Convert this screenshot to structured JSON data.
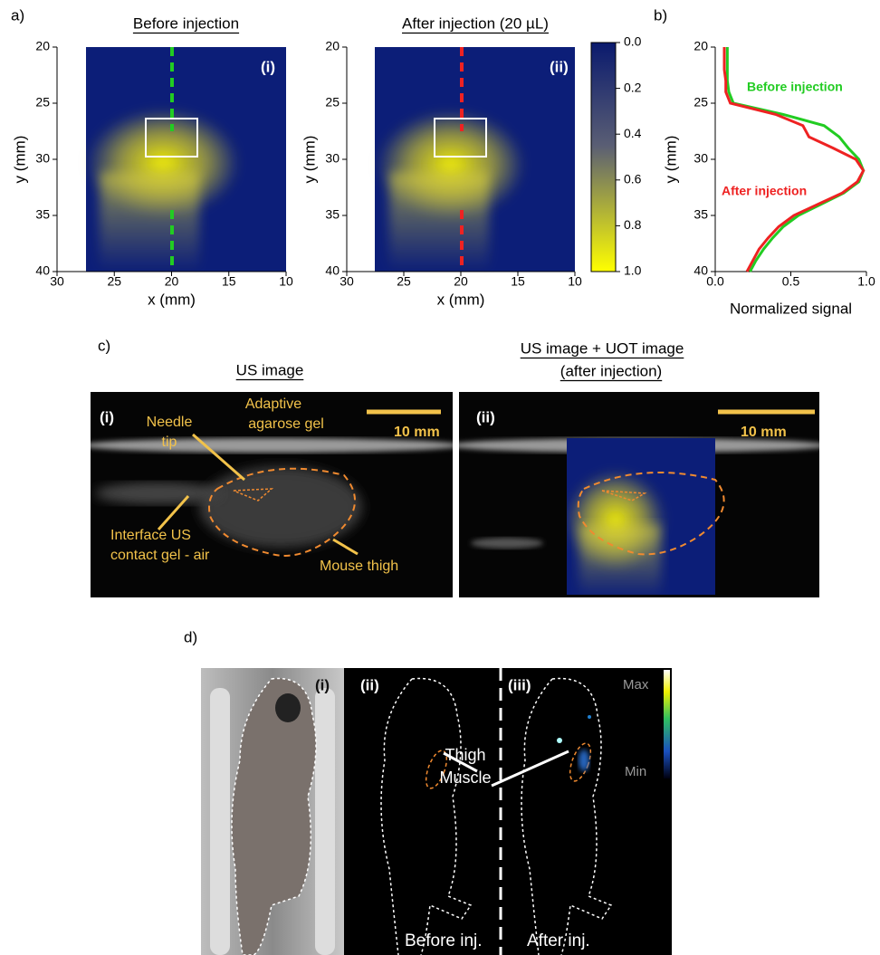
{
  "panel_a": {
    "label": "a)",
    "plots": [
      {
        "title": "Before injection",
        "tag": "(i)",
        "xlabel": "x (mm)",
        "ylabel": "y (mm)",
        "xlim": [
          30,
          10
        ],
        "ylim": [
          20,
          40
        ],
        "xticks": [
          30,
          25,
          20,
          15,
          10
        ],
        "yticks": [
          20,
          25,
          30,
          35,
          40
        ],
        "line_color": "#22cc22"
      },
      {
        "title": "After injection (20 µL)",
        "tag": "(ii)",
        "xlabel": "x (mm)",
        "ylabel": "y (mm)",
        "xlim": [
          30,
          10
        ],
        "ylim": [
          20,
          40
        ],
        "xticks": [
          30,
          25,
          20,
          15,
          10
        ],
        "yticks": [
          20,
          25,
          30,
          35,
          40
        ],
        "line_color": "#ee2222"
      }
    ],
    "colorbar": {
      "lim": [
        0,
        1
      ],
      "ticks": [
        {
          "value": 0,
          "label": "0.0"
        },
        {
          "value": 0.2,
          "label": "0.2"
        },
        {
          "value": 0.4,
          "label": "0.4"
        },
        {
          "value": 0.6,
          "label": "0.6"
        },
        {
          "value": 0.8,
          "label": "0.8"
        },
        {
          "value": 1,
          "label": "1.0"
        }
      ]
    }
  },
  "panel_b": {
    "label": "b)",
    "type": "line",
    "xlabel": "Normalized signal",
    "ylabel": "y (mm)",
    "xlim": [
      0,
      1
    ],
    "ylim": [
      20,
      40
    ],
    "xticks": [
      {
        "value": 0,
        "label": "0.0"
      },
      {
        "value": 0.5,
        "label": "0.5"
      },
      {
        "value": 1,
        "label": "1.0"
      }
    ],
    "yticks": [
      20,
      25,
      30,
      35,
      40
    ],
    "y": [
      20,
      21,
      22,
      23,
      24,
      25,
      26,
      27,
      28,
      29,
      30,
      31,
      32,
      33,
      34,
      35,
      36,
      37,
      38,
      39,
      40
    ],
    "series": [
      {
        "name": "Before injection",
        "color": "#22cc22",
        "values": [
          0.08,
          0.08,
          0.08,
          0.08,
          0.09,
          0.12,
          0.45,
          0.72,
          0.82,
          0.88,
          0.95,
          0.98,
          0.95,
          0.85,
          0.7,
          0.55,
          0.45,
          0.38,
          0.32,
          0.27,
          0.23
        ]
      },
      {
        "name": "After injection",
        "color": "#ee2222",
        "values": [
          0.06,
          0.06,
          0.06,
          0.07,
          0.07,
          0.1,
          0.4,
          0.58,
          0.62,
          0.78,
          0.93,
          0.98,
          0.94,
          0.84,
          0.68,
          0.52,
          0.42,
          0.35,
          0.29,
          0.25,
          0.21
        ]
      }
    ]
  },
  "panel_c": {
    "label": "c)",
    "images": [
      {
        "title": [
          "US image"
        ],
        "tag": "(i)",
        "scale": "10 mm",
        "annotations": {
          "needle": [
            "Needle",
            "tip"
          ],
          "gel": [
            "Adaptive",
            "agarose gel"
          ],
          "interface": [
            "Interface US",
            "contact gel - air"
          ],
          "thigh": [
            "Mouse thigh"
          ]
        }
      },
      {
        "title": [
          "US image + UOT image",
          "(after injection)"
        ],
        "tag": "(ii)",
        "scale": "10 mm"
      }
    ]
  },
  "panel_d": {
    "label": "d)",
    "tags": [
      "(i)",
      "(ii)",
      "(iii)"
    ],
    "colorbar": {
      "max": "Max",
      "min": "Min"
    },
    "annotation": [
      "Thigh",
      "Muscle"
    ],
    "captions": [
      "Before inj.",
      "After inj."
    ]
  }
}
